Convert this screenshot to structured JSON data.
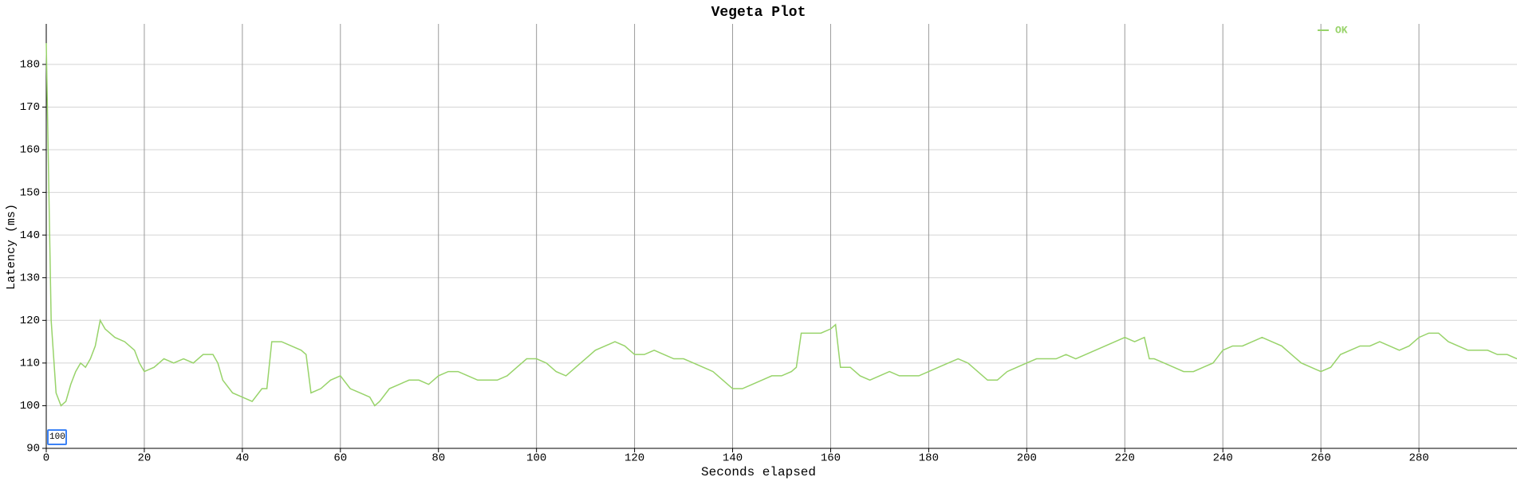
{
  "chart_data": {
    "type": "line",
    "title": "Vegeta Plot",
    "x_label": "Seconds elapsed",
    "y_label": "Latency (ms)",
    "x": [
      0,
      1,
      2,
      3,
      4,
      5,
      6,
      7,
      8,
      9,
      10,
      11,
      12,
      14,
      16,
      18,
      19,
      20,
      22,
      24,
      26,
      28,
      30,
      32,
      34,
      35,
      36,
      38,
      40,
      42,
      44,
      45,
      46,
      48,
      50,
      52,
      53,
      54,
      56,
      58,
      60,
      62,
      64,
      66,
      67,
      68,
      70,
      72,
      74,
      76,
      78,
      80,
      82,
      84,
      86,
      88,
      90,
      92,
      94,
      96,
      98,
      100,
      102,
      104,
      106,
      108,
      110,
      112,
      114,
      116,
      118,
      120,
      122,
      124,
      126,
      128,
      130,
      132,
      134,
      136,
      138,
      140,
      142,
      144,
      146,
      148,
      150,
      152,
      153,
      154,
      156,
      158,
      160,
      161,
      162,
      164,
      166,
      168,
      170,
      172,
      174,
      176,
      178,
      180,
      182,
      184,
      186,
      188,
      190,
      192,
      194,
      196,
      198,
      200,
      202,
      204,
      206,
      208,
      210,
      212,
      214,
      216,
      218,
      220,
      222,
      224,
      225,
      226,
      228,
      230,
      232,
      234,
      236,
      238,
      240,
      242,
      244,
      246,
      248,
      250,
      252,
      254,
      256,
      258,
      260,
      262,
      264,
      266,
      268,
      270,
      272,
      274,
      276,
      278,
      280,
      282,
      284,
      286,
      288,
      290,
      292,
      294,
      296,
      298,
      300
    ],
    "series": [
      {
        "name": "OK",
        "color": "#98d36a",
        "values": [
          185,
          120,
          103,
          100,
          101,
          105,
          108,
          110,
          109,
          111,
          114,
          120,
          118,
          116,
          115,
          113,
          110,
          108,
          109,
          111,
          110,
          111,
          110,
          112,
          112,
          110,
          106,
          103,
          102,
          101,
          104,
          104,
          115,
          115,
          114,
          113,
          112,
          103,
          104,
          106,
          107,
          104,
          103,
          102,
          100,
          101,
          104,
          105,
          106,
          106,
          105,
          107,
          108,
          108,
          107,
          106,
          106,
          106,
          107,
          109,
          111,
          111,
          110,
          108,
          107,
          109,
          111,
          113,
          114,
          115,
          114,
          112,
          112,
          113,
          112,
          111,
          111,
          110,
          109,
          108,
          106,
          104,
          104,
          105,
          106,
          107,
          107,
          108,
          109,
          117,
          117,
          117,
          118,
          119,
          109,
          109,
          107,
          106,
          107,
          108,
          107,
          107,
          107,
          108,
          109,
          110,
          111,
          110,
          108,
          106,
          106,
          108,
          109,
          110,
          111,
          111,
          111,
          112,
          111,
          112,
          113,
          114,
          115,
          116,
          115,
          116,
          111,
          111,
          110,
          109,
          108,
          108,
          109,
          110,
          113,
          114,
          114,
          115,
          116,
          115,
          114,
          112,
          110,
          109,
          108,
          109,
          112,
          113,
          114,
          114,
          115,
          114,
          113,
          114,
          116,
          117,
          117,
          115,
          114,
          113,
          113,
          113,
          112,
          112,
          111
        ]
      }
    ],
    "xlim": [
      0,
      300
    ],
    "ylim": [
      90,
      189.5
    ],
    "xticks": [
      0,
      20,
      40,
      60,
      80,
      100,
      120,
      140,
      160,
      180,
      200,
      220,
      240,
      260,
      280
    ],
    "yticks": [
      90,
      100,
      110,
      120,
      130,
      140,
      150,
      160,
      170,
      180
    ],
    "grid": true,
    "legend": "upper right",
    "roll_period": 100
  }
}
